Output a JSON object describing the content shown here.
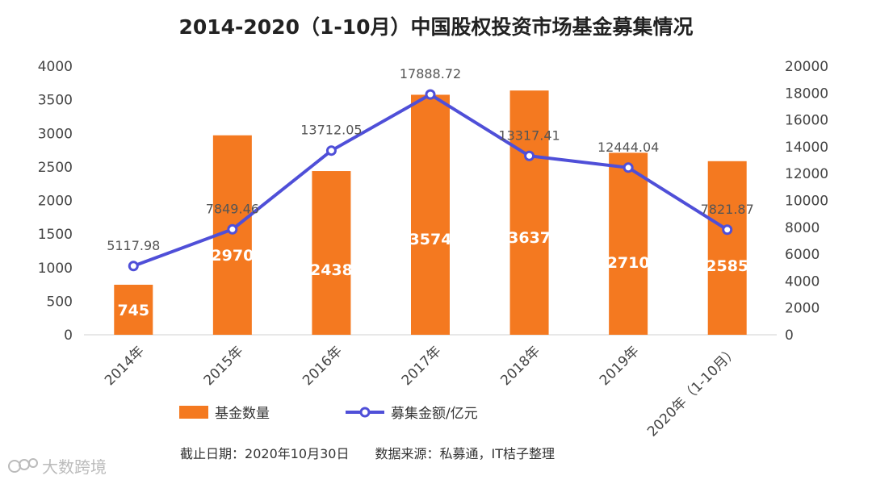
{
  "chart_data": {
    "type": "bar+line",
    "title": "2014-2020（1-10月）中国股权投资市场基金募集情况",
    "categories": [
      "2014年",
      "2015年",
      "2016年",
      "2017年",
      "2018年",
      "2019年",
      "2020年（1-10月）"
    ],
    "series": [
      {
        "name": "基金数量",
        "type": "bar",
        "axis": "left",
        "color": "#F47920",
        "values": [
          745,
          2970,
          2438,
          3574,
          3637,
          2710,
          2585
        ]
      },
      {
        "name": "募集金额/亿元",
        "type": "line",
        "axis": "right",
        "color": "#4F4FD8",
        "values": [
          5117.98,
          7849.46,
          13712.05,
          17888.72,
          13317.41,
          12444.04,
          7821.87
        ],
        "labels": [
          "5117.98",
          "7849.46",
          "13712.05",
          "17888.72",
          "13317.41",
          "12444.04",
          "7821.87"
        ]
      }
    ],
    "left_axis": {
      "min": 0,
      "max": 4000,
      "ticks": [
        "0",
        "500",
        "1000",
        "1500",
        "2000",
        "2500",
        "3000",
        "3500",
        "4000"
      ]
    },
    "right_axis": {
      "min": 0,
      "max": 20000,
      "ticks": [
        "0",
        "2000",
        "4000",
        "6000",
        "8000",
        "10000",
        "12000",
        "14000",
        "16000",
        "18000",
        "20000"
      ]
    },
    "legend": {
      "placement": "bottom",
      "items": [
        "基金数量",
        "募集金额/亿元"
      ]
    },
    "grid": false
  },
  "footer": "截止日期：2020年10月30日　　数据来源：私募通，IT桔子整理",
  "watermark": "大数跨境"
}
